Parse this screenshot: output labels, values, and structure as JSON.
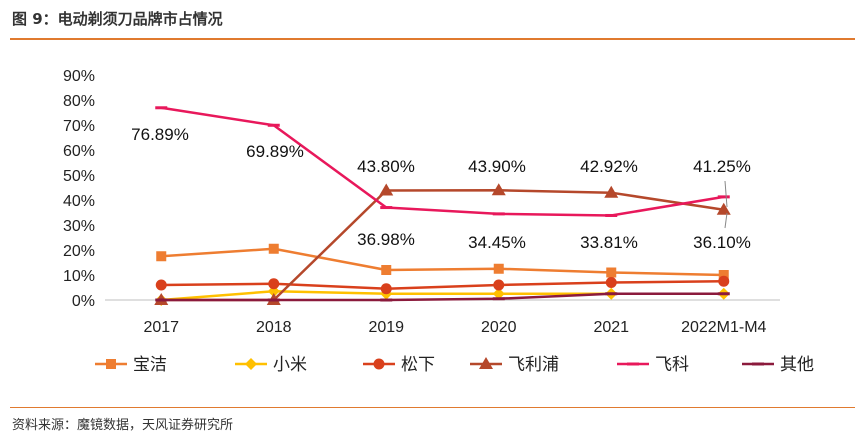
{
  "title": "图 9：电动剃须刀品牌市占情况",
  "source": "资料来源：魔镜数据，天风证券研究所",
  "chart_data": {
    "type": "line",
    "categories": [
      "2017",
      "2018",
      "2019",
      "2020",
      "2021",
      "2022M1-M4"
    ],
    "ylim": [
      0,
      90
    ],
    "ytick_labels": [
      "0%",
      "10%",
      "20%",
      "30%",
      "40%",
      "50%",
      "60%",
      "70%",
      "80%",
      "90%"
    ],
    "legend_position": "bottom",
    "grid": false,
    "series": [
      {
        "name": "宝洁",
        "marker": "square",
        "color": "#ee7d31",
        "values": [
          17.5,
          20.5,
          12.0,
          12.5,
          11.0,
          10.0
        ]
      },
      {
        "name": "小米",
        "marker": "diamond",
        "color": "#ffc000",
        "values": [
          0,
          3.5,
          2.5,
          2.5,
          2.5,
          2.5
        ]
      },
      {
        "name": "松下",
        "marker": "circle",
        "color": "#d9401c",
        "values": [
          6.0,
          6.5,
          4.5,
          6.0,
          7.0,
          7.5
        ]
      },
      {
        "name": "飞利浦",
        "marker": "triangle",
        "color": "#b5482b",
        "values": [
          0,
          0,
          43.8,
          43.9,
          42.92,
          36.1
        ]
      },
      {
        "name": "飞科",
        "marker": "dash",
        "color": "#e8185b",
        "values": [
          76.89,
          69.89,
          36.98,
          34.45,
          33.81,
          41.25
        ]
      },
      {
        "name": "其他",
        "marker": "dash",
        "color": "#8b1a3c",
        "values": [
          0,
          0,
          0,
          0.5,
          2.5,
          2.5
        ]
      }
    ],
    "annotations": [
      {
        "text": "76.89%"
      },
      {
        "text": "69.89%"
      },
      {
        "text": "43.80%"
      },
      {
        "text": "43.90%"
      },
      {
        "text": "42.92%"
      },
      {
        "text": "41.25%"
      },
      {
        "text": "36.98%"
      },
      {
        "text": "34.45%"
      },
      {
        "text": "33.81%"
      },
      {
        "text": "36.10%"
      }
    ]
  }
}
